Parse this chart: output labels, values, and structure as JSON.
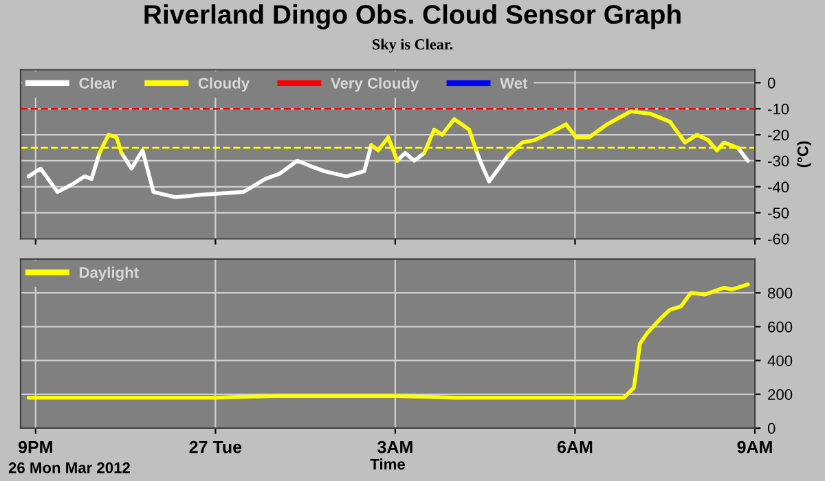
{
  "chart_data": [
    {
      "type": "line",
      "title": "Riverland Dingo Obs. Cloud Sensor Graph",
      "subtitle": "Sky is Clear.",
      "ylabel": "(°C)",
      "x": [
        "2012-03-26T20:53",
        "2012-03-26T21:05",
        "2012-03-26T21:22",
        "2012-03-26T21:37",
        "2012-03-26T21:49",
        "2012-03-26T21:56",
        "2012-03-26T22:04",
        "2012-03-26T22:13",
        "2012-03-26T22:21",
        "2012-03-26T22:26",
        "2012-03-26T22:36",
        "2012-03-26T22:47",
        "2012-03-26T22:58",
        "2012-03-26T23:20",
        "2012-03-26T23:47",
        "2012-03-27T00:28",
        "2012-03-27T00:50",
        "2012-03-27T01:04",
        "2012-03-27T01:22",
        "2012-03-27T01:35",
        "2012-03-27T01:49",
        "2012-03-27T02:11",
        "2012-03-27T02:29",
        "2012-03-27T02:36",
        "2012-03-27T02:43",
        "2012-03-27T02:53",
        "2012-03-27T03:02",
        "2012-03-27T03:10",
        "2012-03-27T03:19",
        "2012-03-27T03:29",
        "2012-03-27T03:39",
        "2012-03-27T03:47",
        "2012-03-27T03:59",
        "2012-03-27T04:14",
        "2012-03-27T04:21",
        "2012-03-27T04:26",
        "2012-03-27T04:34",
        "2012-03-27T04:53",
        "2012-03-27T05:07",
        "2012-03-27T05:20",
        "2012-03-27T05:31",
        "2012-03-27T05:51",
        "2012-03-27T06:01",
        "2012-03-27T06:14",
        "2012-03-27T06:32",
        "2012-03-27T06:56",
        "2012-03-27T07:16",
        "2012-03-27T07:35",
        "2012-03-27T07:50",
        "2012-03-27T08:02",
        "2012-03-27T08:13",
        "2012-03-27T08:22",
        "2012-03-27T08:29",
        "2012-03-27T08:43",
        "2012-03-27T08:53"
      ],
      "series": [
        {
          "name": "Clear",
          "color": "#ffffff",
          "values": [
            -36,
            -33,
            -42,
            -39,
            -36,
            -37,
            -27,
            null,
            null,
            -27,
            -33,
            -26,
            -42,
            -44,
            -43,
            -42,
            -37,
            -35,
            -30,
            -32,
            -34,
            -36,
            -34,
            -24,
            null,
            null,
            -30,
            -27,
            -30,
            -27,
            null,
            null,
            null,
            null,
            -26,
            -31,
            -38,
            -28,
            null,
            null,
            null,
            null,
            null,
            null,
            null,
            null,
            null,
            null,
            null,
            null,
            null,
            null,
            null,
            -25,
            -30
          ]
        },
        {
          "name": "Cloudy",
          "color": "#ffff00",
          "values": [
            null,
            null,
            null,
            null,
            null,
            null,
            -27,
            -20,
            -21,
            -27,
            null,
            null,
            null,
            null,
            null,
            null,
            null,
            null,
            null,
            null,
            null,
            null,
            null,
            -24,
            -26,
            -21,
            -30,
            null,
            null,
            -27,
            -18,
            -20,
            -14,
            -18,
            -26,
            null,
            null,
            -28,
            -23,
            -22,
            -20,
            -16,
            -21,
            -21,
            -16,
            -11,
            -12,
            -15,
            -23,
            -20,
            -22,
            -26,
            -23,
            -25,
            null
          ]
        },
        {
          "name": "Very Cloudy",
          "color": "#ff0000",
          "values": [
            null,
            null,
            null,
            null,
            null,
            null,
            null,
            null,
            null,
            null,
            null,
            null,
            null,
            null,
            null,
            null,
            null,
            null,
            null,
            null,
            null,
            null,
            null,
            null,
            null,
            null,
            null,
            null,
            null,
            null,
            null,
            null,
            null,
            null,
            null,
            null,
            null,
            null,
            null,
            null,
            null,
            null,
            null,
            null,
            null,
            null,
            null,
            null,
            null,
            null,
            null,
            null,
            null,
            null,
            null
          ]
        },
        {
          "name": "Wet",
          "color": "#0000ff",
          "values": [
            null,
            null,
            null,
            null,
            null,
            null,
            null,
            null,
            null,
            null,
            null,
            null,
            null,
            null,
            null,
            null,
            null,
            null,
            null,
            null,
            null,
            null,
            null,
            null,
            null,
            null,
            null,
            null,
            null,
            null,
            null,
            null,
            null,
            null,
            null,
            null,
            null,
            null,
            null,
            null,
            null,
            null,
            null,
            null,
            null,
            null,
            null,
            null,
            null,
            null,
            null,
            null,
            null,
            null,
            null
          ]
        }
      ],
      "ref_lines": [
        {
          "axis": "y",
          "value": -10,
          "color": "#ff0000",
          "line_style": "dashed"
        },
        {
          "axis": "y",
          "value": -25,
          "color": "#ffff00",
          "line_style": "dashed"
        }
      ],
      "xlim": [
        "2012-03-26T20:45",
        "2012-03-27T09:00"
      ],
      "xticks": [
        {
          "value": "2012-03-26T21:00",
          "label": null
        },
        {
          "value": "2012-03-27T00:00",
          "label": null
        },
        {
          "value": "2012-03-27T03:00",
          "label": null
        },
        {
          "value": "2012-03-27T06:00",
          "label": null
        },
        {
          "value": "2012-03-27T09:00",
          "label": null
        }
      ],
      "ylim": [
        -60,
        5
      ],
      "yticks": [
        -60,
        -50,
        -40,
        -30,
        -20,
        -10,
        0
      ],
      "tick_labels": "y",
      "grid": true,
      "legend": "top left",
      "marker": "none",
      "line_style": "solid"
    },
    {
      "type": "line",
      "xlabel": "Time",
      "annotations": [
        "26 Mon Mar 2012"
      ],
      "x": [
        "2012-03-26T20:53",
        "2012-03-26T22:00",
        "2012-03-26T23:00",
        "2012-03-27T00:00",
        "2012-03-27T01:00",
        "2012-03-27T02:00",
        "2012-03-27T03:00",
        "2012-03-27T04:00",
        "2012-03-27T05:00",
        "2012-03-27T06:00",
        "2012-03-27T06:30",
        "2012-03-27T06:49",
        "2012-03-27T06:59",
        "2012-03-27T07:05",
        "2012-03-27T07:12",
        "2012-03-27T07:26",
        "2012-03-27T07:35",
        "2012-03-27T07:46",
        "2012-03-27T07:56",
        "2012-03-27T08:10",
        "2012-03-27T08:29",
        "2012-03-27T08:37",
        "2012-03-27T08:53"
      ],
      "series": [
        {
          "name": "Daylight",
          "color": "#ffff00",
          "values": [
            180,
            180,
            180,
            180,
            190,
            190,
            190,
            180,
            180,
            180,
            180,
            180,
            240,
            500,
            560,
            650,
            700,
            720,
            800,
            790,
            830,
            820,
            850
          ]
        }
      ],
      "xlim": [
        "2012-03-26T20:45",
        "2012-03-27T09:00"
      ],
      "xticks": [
        {
          "value": "2012-03-26T21:00",
          "label": "9PM"
        },
        {
          "value": "2012-03-27T00:00",
          "label": "27 Tue"
        },
        {
          "value": "2012-03-27T03:00",
          "label": "3AM"
        },
        {
          "value": "2012-03-27T06:00",
          "label": "6AM"
        },
        {
          "value": "2012-03-27T09:00",
          "label": "9AM"
        }
      ],
      "ylim": [
        0,
        1000
      ],
      "yticks": [
        0,
        200,
        400,
        600,
        800
      ],
      "grid": true,
      "legend": "top left",
      "marker": "none",
      "line_style": "solid"
    }
  ]
}
